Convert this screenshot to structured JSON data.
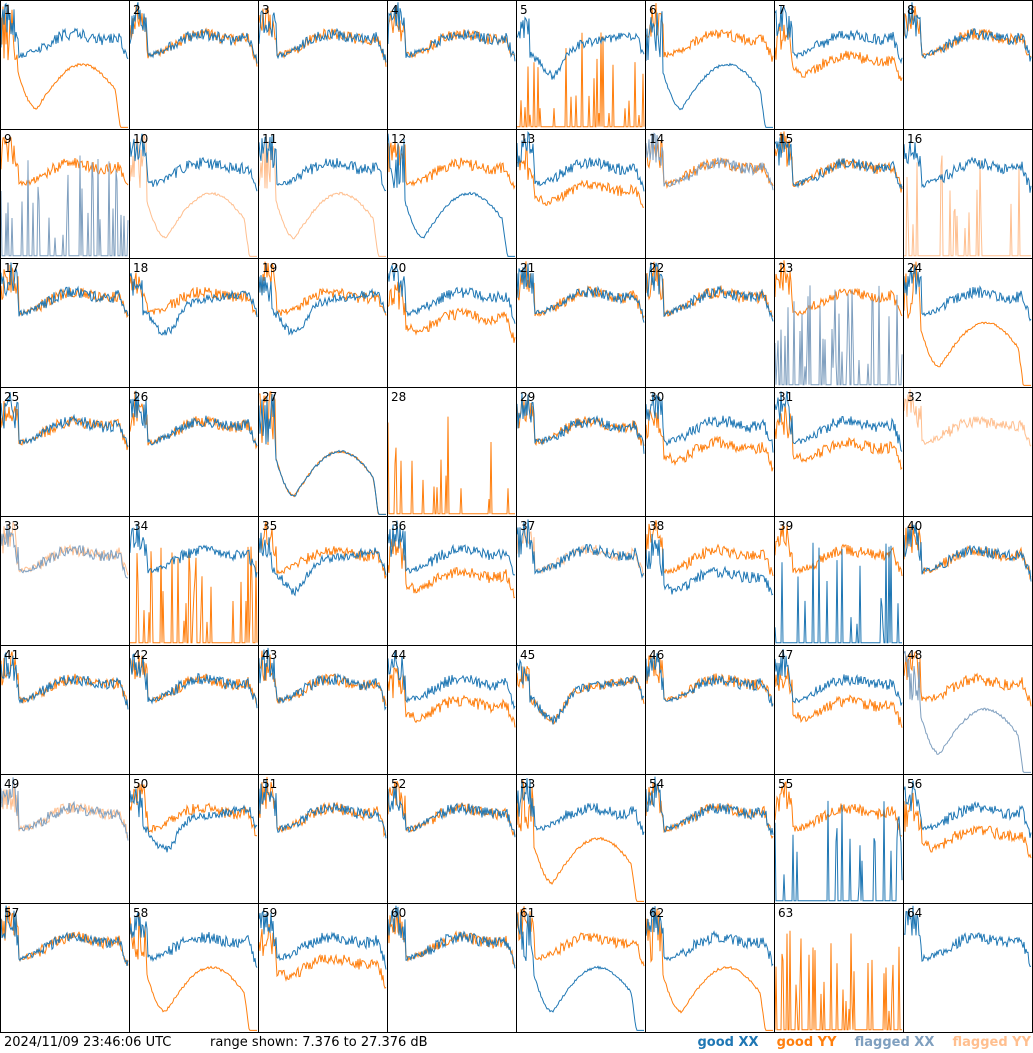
{
  "footer": {
    "timestamp": "2024/11/09 23:46:06 UTC",
    "range_text": "range shown: 7.376 to 27.376 dB",
    "legend": [
      {
        "label": "good XX",
        "color": "#1f77b4"
      },
      {
        "label": "good YY",
        "color": "#ff7f0e"
      },
      {
        "label": "flagged XX",
        "color": "#7f9fbf"
      },
      {
        "label": "flagged YY",
        "color": "#ffbf8f"
      }
    ]
  },
  "chart_data": {
    "type": "line",
    "layout": "8x8 small multiples, one panel per input",
    "ylim_db": [
      7.376,
      27.376
    ],
    "panels": [
      {
        "id": "1",
        "xx": "normal",
        "yy": "dip",
        "yflag": false,
        "xflag": false
      },
      {
        "id": "2",
        "xx": "normal",
        "yy": "normal",
        "yflag": false,
        "xflag": false
      },
      {
        "id": "3",
        "xx": "normal",
        "yy": "normal",
        "yflag": false,
        "xflag": false
      },
      {
        "id": "4",
        "xx": "normal",
        "yy": "normal",
        "yflag": false,
        "xflag": false
      },
      {
        "id": "5",
        "xx": "bowl",
        "yy": "spiky",
        "yflag": false,
        "xflag": false
      },
      {
        "id": "6",
        "xx": "dip",
        "yy": "normal",
        "yflag": false,
        "xflag": false
      },
      {
        "id": "7",
        "xx": "normal",
        "yy": "low",
        "yflag": false,
        "xflag": false
      },
      {
        "id": "8",
        "xx": "normal",
        "yy": "normal",
        "yflag": false,
        "xflag": false
      },
      {
        "id": "9",
        "xx": "spiky",
        "yy": "normal",
        "yflag": false,
        "xflag": true
      },
      {
        "id": "10",
        "xx": "normal",
        "yy": "dip",
        "yflag": true,
        "xflag": false
      },
      {
        "id": "11",
        "xx": "normal",
        "yy": "dip",
        "yflag": true,
        "xflag": false
      },
      {
        "id": "12",
        "xx": "dip",
        "yy": "normal",
        "yflag": false,
        "xflag": false
      },
      {
        "id": "13",
        "xx": "normal",
        "yy": "low",
        "yflag": false,
        "xflag": false
      },
      {
        "id": "14",
        "xx": "normal",
        "yy": "normal",
        "yflag": false,
        "xflag": true
      },
      {
        "id": "15",
        "xx": "normal",
        "yy": "normal",
        "yflag": false,
        "xflag": false
      },
      {
        "id": "16",
        "xx": "normal",
        "yy": "spiky",
        "yflag": true,
        "xflag": false
      },
      {
        "id": "17",
        "xx": "normal",
        "yy": "normal",
        "yflag": false,
        "xflag": false
      },
      {
        "id": "18",
        "xx": "bowl",
        "yy": "normal",
        "yflag": false,
        "xflag": false
      },
      {
        "id": "19",
        "xx": "bowl",
        "yy": "normal",
        "yflag": false,
        "xflag": false
      },
      {
        "id": "20",
        "xx": "normal",
        "yy": "low",
        "yflag": false,
        "xflag": false
      },
      {
        "id": "21",
        "xx": "normal",
        "yy": "normal",
        "yflag": false,
        "xflag": false
      },
      {
        "id": "22",
        "xx": "normal",
        "yy": "normal",
        "yflag": false,
        "xflag": false
      },
      {
        "id": "23",
        "xx": "spiky",
        "yy": "normal",
        "yflag": false,
        "xflag": true
      },
      {
        "id": "24",
        "xx": "normal",
        "yy": "dip",
        "yflag": false,
        "xflag": false
      },
      {
        "id": "25",
        "xx": "normal",
        "yy": "normal",
        "yflag": false,
        "xflag": false
      },
      {
        "id": "26",
        "xx": "normal",
        "yy": "normal",
        "yflag": false,
        "xflag": false
      },
      {
        "id": "27",
        "xx": "dip",
        "yy": "dip",
        "yflag": false,
        "xflag": false
      },
      {
        "id": "28",
        "xx": "none",
        "yy": "spiky",
        "yflag": false,
        "xflag": false
      },
      {
        "id": "29",
        "xx": "normal",
        "yy": "normal",
        "yflag": false,
        "xflag": false
      },
      {
        "id": "30",
        "xx": "normal",
        "yy": "low",
        "yflag": false,
        "xflag": false
      },
      {
        "id": "31",
        "xx": "normal",
        "yy": "low",
        "yflag": false,
        "xflag": false
      },
      {
        "id": "32",
        "xx": "none",
        "yy": "normal",
        "yflag": true,
        "xflag": false
      },
      {
        "id": "33",
        "xx": "normal",
        "yy": "normal",
        "yflag": true,
        "xflag": true
      },
      {
        "id": "34",
        "xx": "normal",
        "yy": "spiky",
        "yflag": false,
        "xflag": false
      },
      {
        "id": "35",
        "xx": "bowl",
        "yy": "normal",
        "yflag": false,
        "xflag": false
      },
      {
        "id": "36",
        "xx": "normal",
        "yy": "low",
        "yflag": false,
        "xflag": false
      },
      {
        "id": "37",
        "xx": "normal",
        "yy": "normal",
        "yflag": true,
        "xflag": false
      },
      {
        "id": "38",
        "xx": "low",
        "yy": "normal",
        "yflag": false,
        "xflag": false
      },
      {
        "id": "39",
        "xx": "spiky",
        "yy": "normal",
        "yflag": false,
        "xflag": false
      },
      {
        "id": "40",
        "xx": "normal",
        "yy": "normal",
        "yflag": false,
        "xflag": false
      },
      {
        "id": "41",
        "xx": "normal",
        "yy": "normal",
        "yflag": false,
        "xflag": false
      },
      {
        "id": "42",
        "xx": "normal",
        "yy": "normal",
        "yflag": false,
        "xflag": false
      },
      {
        "id": "43",
        "xx": "normal",
        "yy": "normal",
        "yflag": false,
        "xflag": false
      },
      {
        "id": "44",
        "xx": "normal",
        "yy": "low",
        "yflag": false,
        "xflag": false
      },
      {
        "id": "45",
        "xx": "bowl",
        "yy": "bowl",
        "yflag": false,
        "xflag": false
      },
      {
        "id": "46",
        "xx": "normal",
        "yy": "normal",
        "yflag": false,
        "xflag": false
      },
      {
        "id": "47",
        "xx": "normal",
        "yy": "low",
        "yflag": false,
        "xflag": false
      },
      {
        "id": "48",
        "xx": "dip",
        "yy": "normal",
        "yflag": false,
        "xflag": true
      },
      {
        "id": "49",
        "xx": "normal",
        "yy": "normal",
        "yflag": true,
        "xflag": true
      },
      {
        "id": "50",
        "xx": "bowl",
        "yy": "normal",
        "yflag": false,
        "xflag": false
      },
      {
        "id": "51",
        "xx": "normal",
        "yy": "normal",
        "yflag": false,
        "xflag": false
      },
      {
        "id": "52",
        "xx": "normal",
        "yy": "normal",
        "yflag": false,
        "xflag": false
      },
      {
        "id": "53",
        "xx": "normal",
        "yy": "dip",
        "yflag": false,
        "xflag": false
      },
      {
        "id": "54",
        "xx": "normal",
        "yy": "normal",
        "yflag": false,
        "xflag": false
      },
      {
        "id": "55",
        "xx": "spiky",
        "yy": "normal",
        "yflag": false,
        "xflag": false
      },
      {
        "id": "56",
        "xx": "normal",
        "yy": "low",
        "yflag": false,
        "xflag": false
      },
      {
        "id": "57",
        "xx": "normal",
        "yy": "normal",
        "yflag": false,
        "xflag": false
      },
      {
        "id": "58",
        "xx": "normal",
        "yy": "dip",
        "yflag": false,
        "xflag": false
      },
      {
        "id": "59",
        "xx": "normal",
        "yy": "low",
        "yflag": false,
        "xflag": false
      },
      {
        "id": "60",
        "xx": "normal",
        "yy": "normal",
        "yflag": false,
        "xflag": false
      },
      {
        "id": "61",
        "xx": "dip",
        "yy": "normal",
        "yflag": false,
        "xflag": false
      },
      {
        "id": "62",
        "xx": "normal",
        "yy": "dip",
        "yflag": false,
        "xflag": false
      },
      {
        "id": "63",
        "xx": "none",
        "yy": "spiky",
        "yflag": false,
        "xflag": false
      },
      {
        "id": "64",
        "xx": "normal",
        "yy": "none",
        "yflag": false,
        "xflag": false
      }
    ]
  }
}
